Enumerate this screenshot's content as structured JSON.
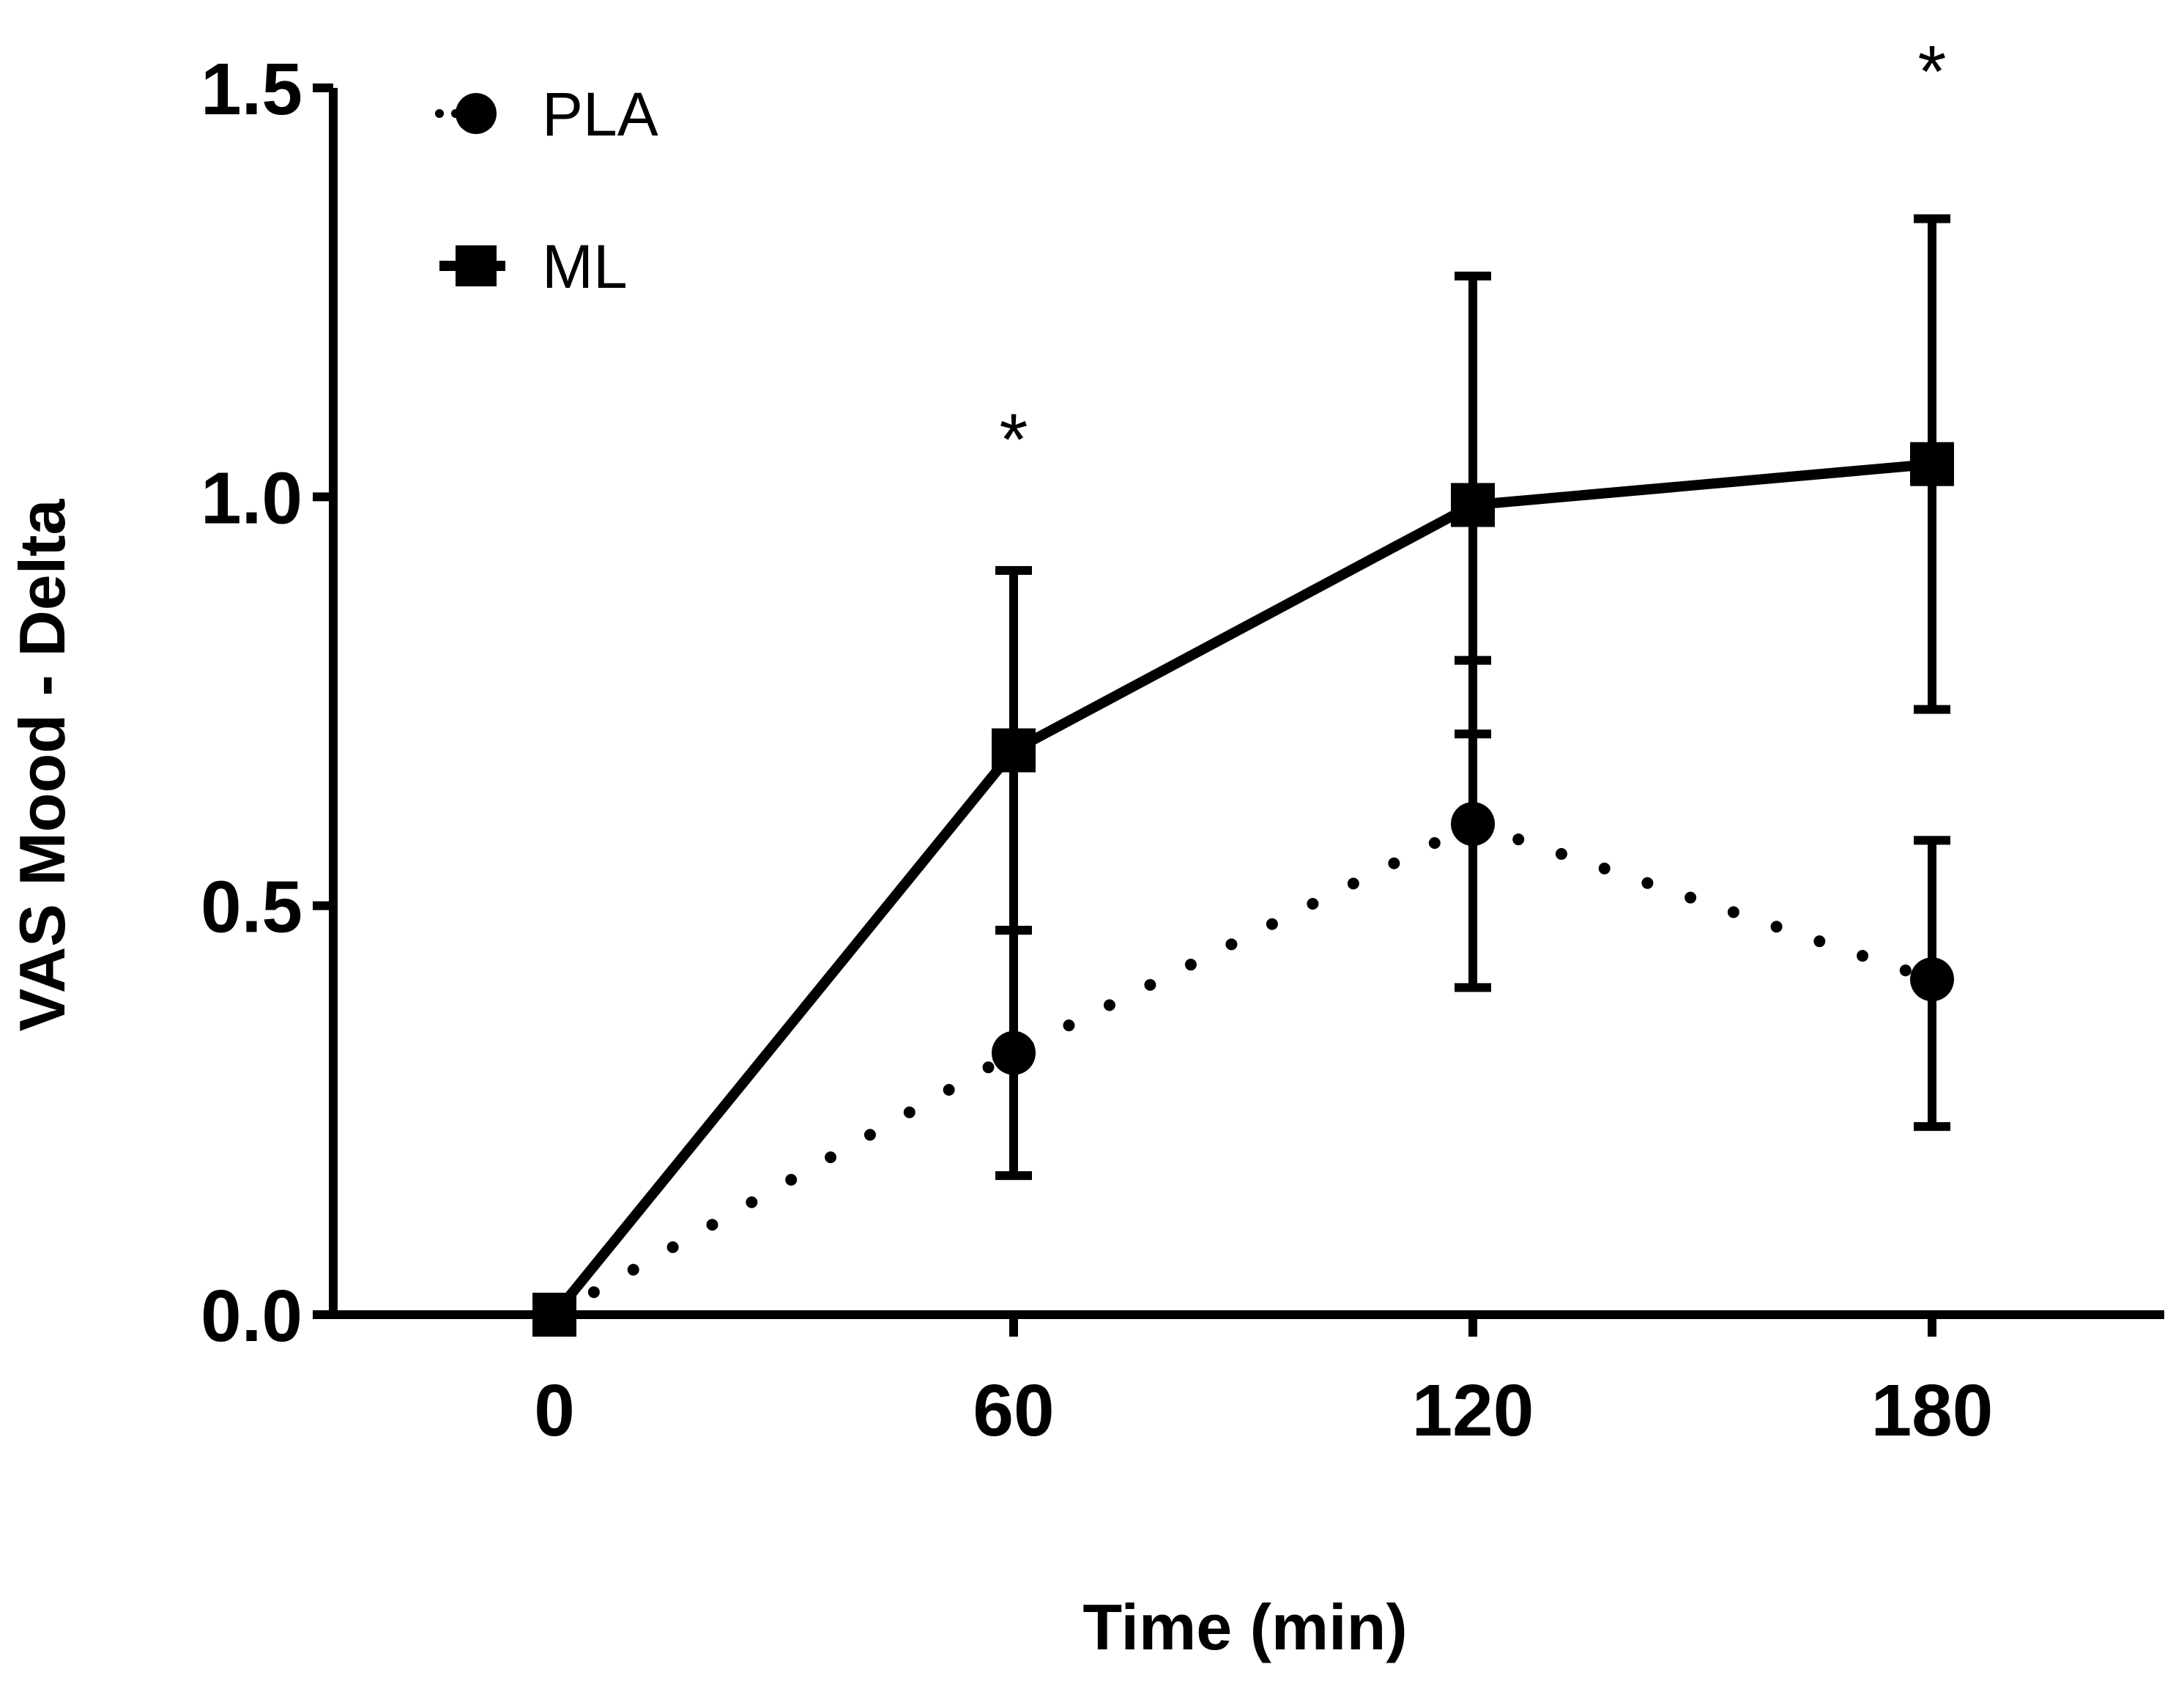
{
  "chart_data": {
    "type": "line",
    "title": "",
    "xlabel": "Time (min)",
    "ylabel": "VAS Mood - Delta",
    "x": [
      0,
      60,
      120,
      180
    ],
    "x_tick_labels": [
      "0",
      "60",
      "120",
      "180"
    ],
    "y_ticks": [
      0.0,
      0.5,
      1.0,
      1.5
    ],
    "y_tick_labels": [
      "0.0",
      "0.5",
      "1.0",
      "1.5"
    ],
    "xlim": [
      -30,
      210
    ],
    "ylim": [
      0,
      1.5
    ],
    "grid": false,
    "legend_position": "top-left",
    "series": [
      {
        "name": "PLA",
        "marker": "circle",
        "line_style": "dotted",
        "color": "#000000",
        "values": [
          0.0,
          0.32,
          0.6,
          0.41
        ],
        "err_low": [
          0.0,
          0.17,
          0.4,
          0.23
        ],
        "err_high": [
          0.0,
          0.47,
          0.8,
          0.58
        ]
      },
      {
        "name": "ML",
        "marker": "square",
        "line_style": "solid",
        "color": "#000000",
        "values": [
          0.0,
          0.69,
          0.99,
          1.04
        ],
        "err_low": [
          0.0,
          0.47,
          0.71,
          0.74
        ],
        "err_high": [
          0.0,
          0.91,
          1.27,
          1.34
        ]
      }
    ],
    "annotations": [
      {
        "text": "*",
        "x": 60,
        "y": 1.1
      },
      {
        "text": "*",
        "x": 180,
        "y": 1.55
      }
    ]
  }
}
